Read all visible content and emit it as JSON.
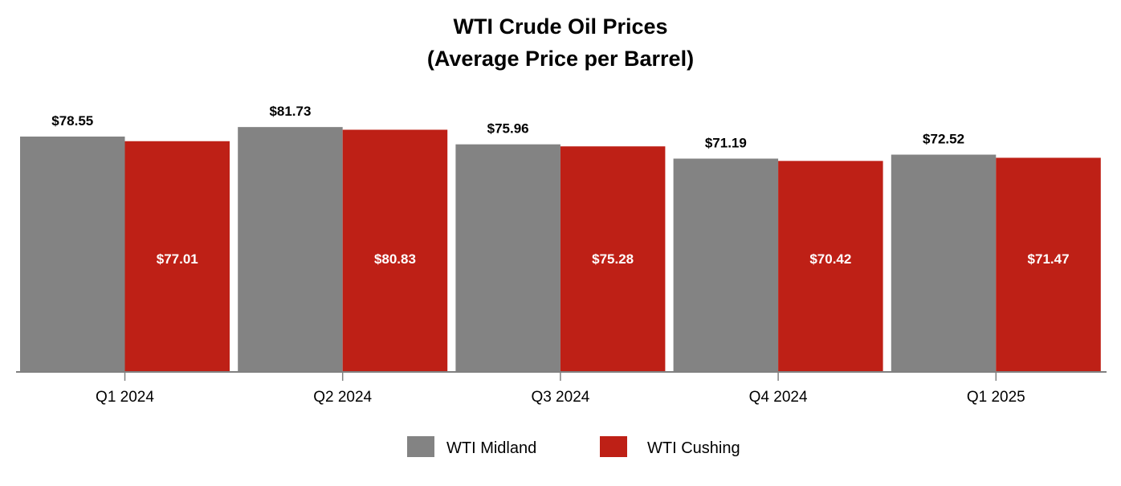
{
  "chart_data": {
    "type": "bar",
    "title": "WTI Crude Oil Prices",
    "subtitle": "(Average Price per Barrel)",
    "xlabel": "",
    "ylabel": "",
    "ylim": [
      0,
      100
    ],
    "grid": false,
    "legend_position": "bottom-center",
    "categories": [
      "Q1 2024",
      "Q2 2024",
      "Q3 2024",
      "Q4 2024",
      "Q1 2025"
    ],
    "series": [
      {
        "name": "WTI Midland",
        "color": "#838383",
        "values": [
          78.55,
          81.73,
          75.96,
          71.19,
          72.52
        ],
        "labels": [
          "$78.55",
          "$81.73",
          "$75.96",
          "$71.19",
          "$72.52"
        ]
      },
      {
        "name": "WTI Cushing",
        "color": "#BE2016",
        "values": [
          77.01,
          80.83,
          75.28,
          70.42,
          71.47
        ],
        "labels": [
          "$77.01",
          "$80.83",
          "$75.28",
          "$70.42",
          "$71.47"
        ]
      }
    ]
  }
}
